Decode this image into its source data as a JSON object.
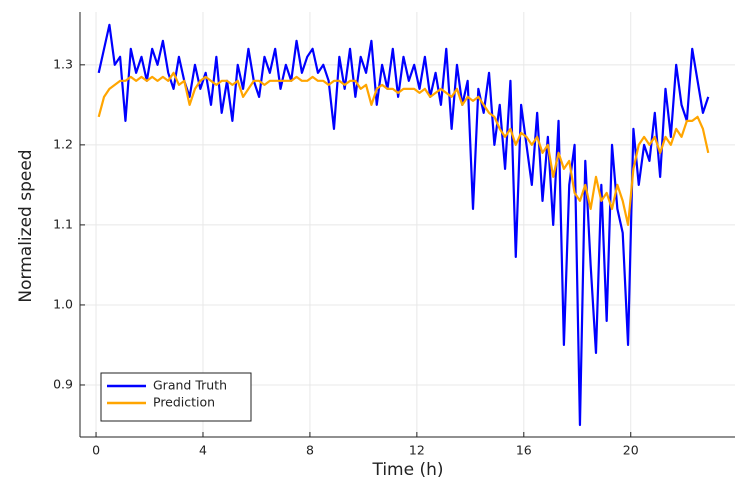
{
  "chart_data": {
    "type": "line",
    "xlabel": "Time (h)",
    "ylabel": "Normalized speed",
    "x": [
      0.1,
      0.3,
      0.5,
      0.7,
      0.9,
      1.1,
      1.3,
      1.5,
      1.7,
      1.9,
      2.1,
      2.3,
      2.5,
      2.7,
      2.9,
      3.1,
      3.3,
      3.5,
      3.7,
      3.9,
      4.1,
      4.3,
      4.5,
      4.7,
      4.9,
      5.1,
      5.3,
      5.5,
      5.7,
      5.9,
      6.1,
      6.3,
      6.5,
      6.7,
      6.9,
      7.1,
      7.3,
      7.5,
      7.7,
      7.9,
      8.1,
      8.3,
      8.5,
      8.7,
      8.9,
      9.1,
      9.3,
      9.5,
      9.7,
      9.9,
      10.1,
      10.3,
      10.5,
      10.7,
      10.9,
      11.1,
      11.3,
      11.5,
      11.7,
      11.9,
      12.1,
      12.3,
      12.5,
      12.7,
      12.9,
      13.1,
      13.3,
      13.5,
      13.7,
      13.9,
      14.1,
      14.3,
      14.5,
      14.7,
      14.9,
      15.1,
      15.3,
      15.5,
      15.7,
      15.9,
      16.1,
      16.3,
      16.5,
      16.7,
      16.9,
      17.1,
      17.3,
      17.5,
      17.7,
      17.9,
      18.1,
      18.3,
      18.5,
      18.7,
      18.9,
      19.1,
      19.3,
      19.5,
      19.7,
      19.9,
      20.1,
      20.3,
      20.5,
      20.7,
      20.9,
      21.1,
      21.3,
      21.5,
      21.7,
      21.9,
      22.1,
      22.3,
      22.5,
      22.7,
      22.9
    ],
    "series": [
      {
        "name": "Grand Truth",
        "color": "#0000ff",
        "values": [
          1.29,
          1.32,
          1.35,
          1.3,
          1.31,
          1.23,
          1.32,
          1.29,
          1.31,
          1.28,
          1.32,
          1.3,
          1.33,
          1.29,
          1.27,
          1.31,
          1.28,
          1.26,
          1.3,
          1.27,
          1.29,
          1.25,
          1.31,
          1.24,
          1.28,
          1.23,
          1.3,
          1.27,
          1.32,
          1.28,
          1.26,
          1.31,
          1.29,
          1.32,
          1.27,
          1.3,
          1.28,
          1.33,
          1.29,
          1.31,
          1.32,
          1.29,
          1.3,
          1.28,
          1.22,
          1.31,
          1.27,
          1.32,
          1.26,
          1.31,
          1.29,
          1.33,
          1.25,
          1.3,
          1.27,
          1.32,
          1.26,
          1.31,
          1.28,
          1.3,
          1.27,
          1.31,
          1.26,
          1.29,
          1.25,
          1.32,
          1.22,
          1.3,
          1.25,
          1.28,
          1.12,
          1.27,
          1.24,
          1.29,
          1.2,
          1.25,
          1.17,
          1.28,
          1.06,
          1.25,
          1.2,
          1.15,
          1.24,
          1.13,
          1.21,
          1.1,
          1.23,
          0.95,
          1.15,
          1.2,
          0.85,
          1.18,
          1.05,
          0.94,
          1.15,
          0.98,
          1.2,
          1.12,
          1.09,
          0.95,
          1.22,
          1.15,
          1.2,
          1.18,
          1.24,
          1.16,
          1.27,
          1.21,
          1.3,
          1.25,
          1.23,
          1.32,
          1.28,
          1.24,
          1.26
        ]
      },
      {
        "name": "Prediction",
        "color": "#ffa500",
        "values": [
          1.235,
          1.26,
          1.27,
          1.275,
          1.28,
          1.28,
          1.285,
          1.28,
          1.285,
          1.28,
          1.285,
          1.28,
          1.285,
          1.28,
          1.29,
          1.275,
          1.28,
          1.25,
          1.27,
          1.28,
          1.285,
          1.28,
          1.275,
          1.28,
          1.28,
          1.275,
          1.28,
          1.26,
          1.27,
          1.28,
          1.28,
          1.275,
          1.28,
          1.28,
          1.28,
          1.28,
          1.28,
          1.285,
          1.28,
          1.28,
          1.285,
          1.28,
          1.28,
          1.275,
          1.28,
          1.28,
          1.275,
          1.28,
          1.28,
          1.27,
          1.275,
          1.25,
          1.27,
          1.275,
          1.27,
          1.27,
          1.265,
          1.27,
          1.27,
          1.27,
          1.265,
          1.27,
          1.26,
          1.265,
          1.27,
          1.265,
          1.26,
          1.27,
          1.25,
          1.26,
          1.255,
          1.26,
          1.25,
          1.24,
          1.235,
          1.22,
          1.21,
          1.22,
          1.2,
          1.215,
          1.21,
          1.2,
          1.21,
          1.19,
          1.2,
          1.16,
          1.19,
          1.17,
          1.18,
          1.14,
          1.13,
          1.15,
          1.12,
          1.16,
          1.13,
          1.14,
          1.12,
          1.15,
          1.13,
          1.1,
          1.17,
          1.2,
          1.21,
          1.2,
          1.21,
          1.19,
          1.21,
          1.2,
          1.22,
          1.21,
          1.23,
          1.23,
          1.235,
          1.22,
          1.19
        ]
      }
    ],
    "xlim": [
      -0.6,
      23.9
    ],
    "xticks": [
      0,
      4,
      8,
      12,
      16,
      20
    ],
    "ylim": [
      0.835,
      1.366
    ],
    "yticks": [
      0.9,
      {
        "value": 1,
        "label": "1.0"
      },
      1.1,
      1.2,
      1.3
    ],
    "grid": true,
    "legend": "bottom-left"
  }
}
